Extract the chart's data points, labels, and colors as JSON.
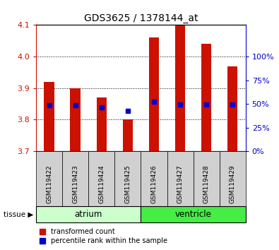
{
  "title": "GDS3625 / 1378144_at",
  "samples": [
    "GSM119422",
    "GSM119423",
    "GSM119424",
    "GSM119425",
    "GSM119426",
    "GSM119427",
    "GSM119428",
    "GSM119429"
  ],
  "bar_tops": [
    3.92,
    3.9,
    3.87,
    3.8,
    4.06,
    4.12,
    4.04,
    3.97
  ],
  "blue_dots": [
    3.845,
    3.845,
    3.84,
    3.828,
    3.856,
    3.848,
    3.848,
    3.848
  ],
  "bar_bottom": 3.7,
  "ylim": [
    3.7,
    4.1
  ],
  "yticks_left": [
    3.7,
    3.8,
    3.9,
    4.0,
    4.1
  ],
  "yticks_right_labels": [
    "0%",
    "25%",
    "50%",
    "75%",
    "100%"
  ],
  "yticks_right_vals": [
    3.7,
    3.775,
    3.85,
    3.925,
    4.0
  ],
  "bar_color": "#cc1100",
  "dot_color": "#0000cc",
  "atrium_color": "#ccffcc",
  "ventricle_color": "#44ee44",
  "label_bg_color": "#d0d0d0",
  "label_color_red": "#cc1100",
  "label_color_blue": "#0000cc",
  "background_color": "#ffffff"
}
